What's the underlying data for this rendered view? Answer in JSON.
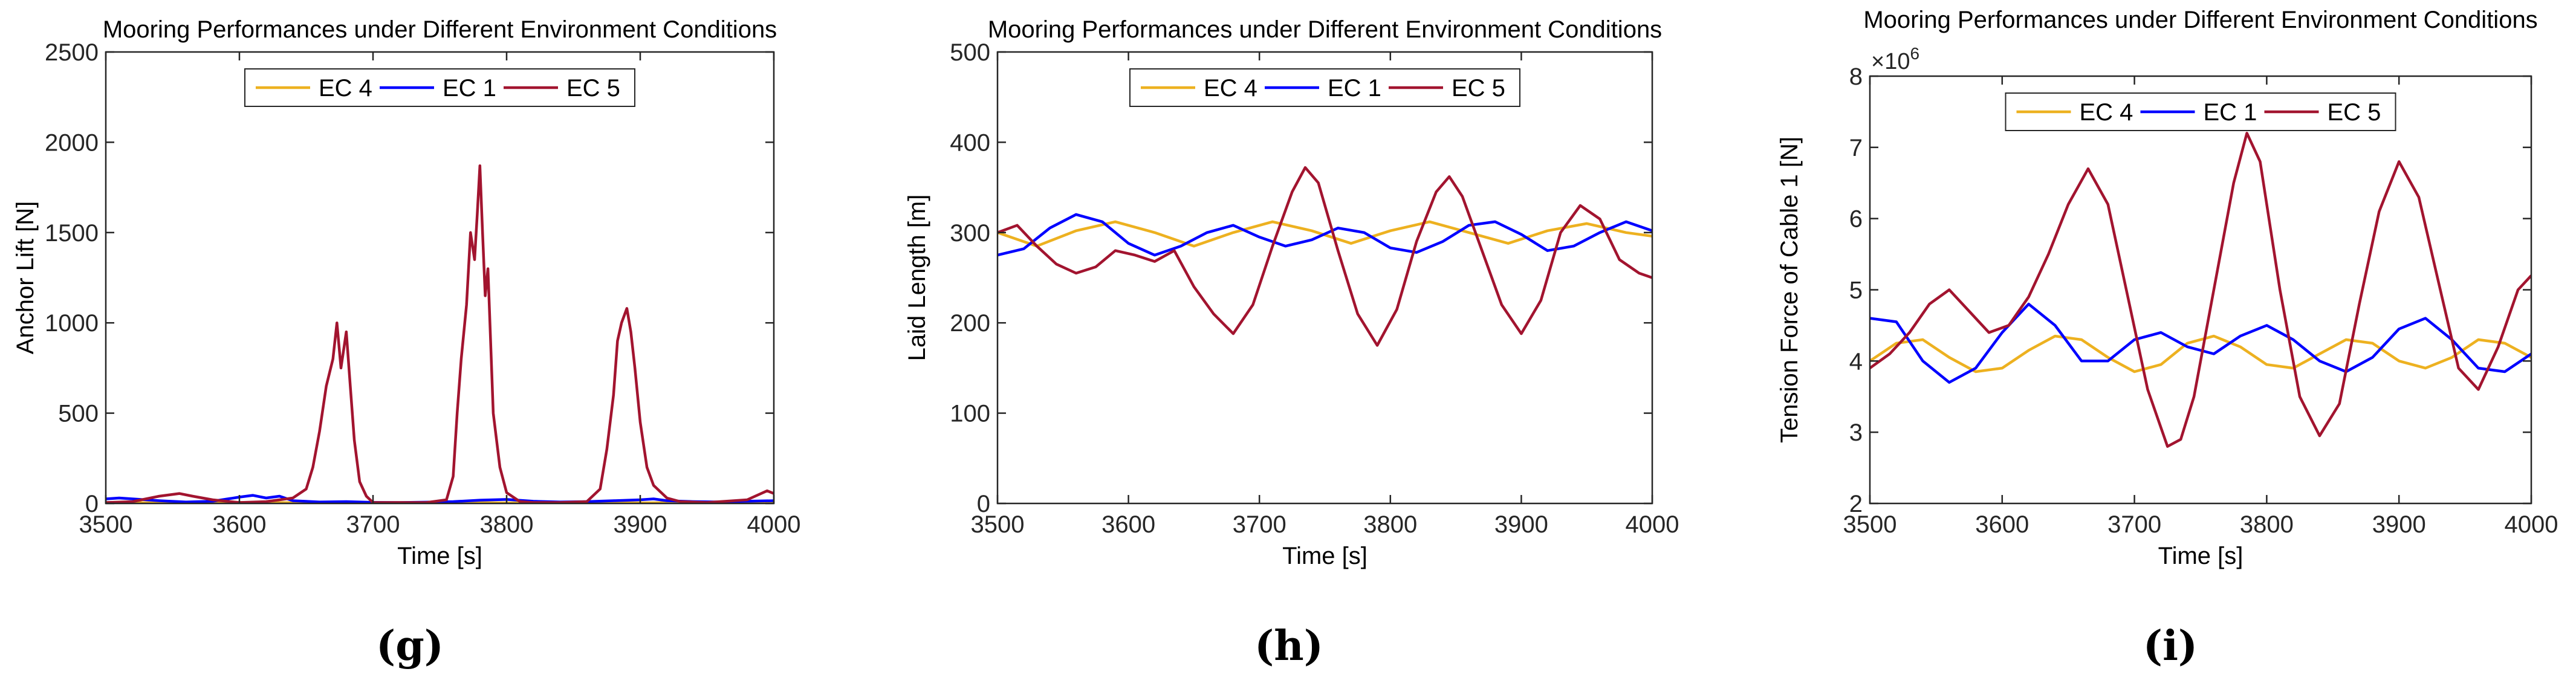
{
  "colors": {
    "ec4": "#EDB120",
    "ec1": "#0000FF",
    "ec5": "#A2142F",
    "axis": "#262626",
    "background": "#ffffff"
  },
  "chart_data": [
    {
      "type": "line",
      "panel_label": "(g)",
      "title": "Mooring Performances under Different Environment Conditions",
      "xlabel": "Time [s]",
      "ylabel": "Anchor Lift [N]",
      "xlim": [
        3500,
        4000
      ],
      "ylim": [
        0,
        2500
      ],
      "x_ticks": [
        3500,
        3600,
        3700,
        3800,
        3900,
        4000
      ],
      "y_ticks": [
        0,
        500,
        1000,
        1500,
        2000,
        2500
      ],
      "y_tick_labels": [
        "0",
        "500",
        "1000",
        "1500",
        "2000",
        "2500"
      ],
      "y_exponent": "",
      "legend": "top-center, horizontal",
      "series": [
        {
          "name": "EC 4",
          "color": "#EDB120",
          "x": [
            3500,
            3520,
            3540,
            3560,
            3580,
            3600,
            3620,
            3640,
            3660,
            3680,
            3700,
            3720,
            3740,
            3760,
            3780,
            3800,
            3820,
            3840,
            3860,
            3880,
            3900,
            3920,
            3940,
            3960,
            3980,
            4000
          ],
          "y": [
            5,
            4,
            3,
            4,
            5,
            6,
            5,
            4,
            3,
            3,
            4,
            5,
            6,
            5,
            4,
            3,
            4,
            5,
            5,
            4,
            3,
            4,
            5,
            6,
            5,
            4
          ]
        },
        {
          "name": "EC 1",
          "color": "#0000FF",
          "x": [
            3500,
            3510,
            3520,
            3540,
            3560,
            3580,
            3600,
            3610,
            3620,
            3630,
            3640,
            3660,
            3680,
            3700,
            3720,
            3740,
            3760,
            3780,
            3800,
            3820,
            3840,
            3860,
            3880,
            3900,
            3910,
            3920,
            3940,
            3960,
            3980,
            4000
          ],
          "y": [
            25,
            30,
            25,
            15,
            8,
            12,
            35,
            45,
            30,
            40,
            15,
            8,
            10,
            6,
            5,
            7,
            10,
            18,
            22,
            12,
            8,
            10,
            15,
            20,
            25,
            15,
            10,
            8,
            12,
            15
          ]
        },
        {
          "name": "EC 5",
          "color": "#A2142F",
          "x": [
            3500,
            3520,
            3540,
            3555,
            3565,
            3580,
            3600,
            3620,
            3640,
            3650,
            3655,
            3660,
            3665,
            3670,
            3673,
            3676,
            3680,
            3683,
            3686,
            3690,
            3695,
            3700,
            3710,
            3720,
            3740,
            3755,
            3760,
            3763,
            3766,
            3770,
            3773,
            3776,
            3778,
            3780,
            3782,
            3784,
            3786,
            3788,
            3790,
            3795,
            3800,
            3810,
            3820,
            3840,
            3860,
            3870,
            3875,
            3880,
            3883,
            3886,
            3890,
            3893,
            3896,
            3900,
            3905,
            3910,
            3920,
            3930,
            3950,
            3980,
            3995,
            4000
          ],
          "y": [
            5,
            10,
            40,
            55,
            40,
            20,
            5,
            10,
            30,
            80,
            200,
            400,
            650,
            800,
            1000,
            750,
            950,
            650,
            350,
            120,
            40,
            5,
            5,
            5,
            5,
            20,
            150,
            500,
            800,
            1100,
            1500,
            1350,
            1600,
            1870,
            1500,
            1150,
            1300,
            900,
            500,
            200,
            60,
            10,
            5,
            5,
            10,
            80,
            300,
            600,
            900,
            1000,
            1080,
            950,
            750,
            450,
            200,
            100,
            30,
            10,
            5,
            20,
            70,
            55
          ]
        }
      ]
    },
    {
      "type": "line",
      "panel_label": "(h)",
      "title": "Mooring Performances under Different Environment Conditions",
      "xlabel": "Time [s]",
      "ylabel": "Laid Length [m]",
      "xlim": [
        3500,
        4000
      ],
      "ylim": [
        0,
        500
      ],
      "x_ticks": [
        3500,
        3600,
        3700,
        3800,
        3900,
        4000
      ],
      "y_ticks": [
        0,
        100,
        200,
        300,
        400,
        500
      ],
      "y_tick_labels": [
        "0",
        "100",
        "200",
        "300",
        "400",
        "500"
      ],
      "y_exponent": "",
      "legend": "top-center, horizontal",
      "series": [
        {
          "name": "EC 4",
          "color": "#EDB120",
          "x": [
            3500,
            3530,
            3560,
            3590,
            3620,
            3650,
            3680,
            3710,
            3740,
            3770,
            3800,
            3830,
            3860,
            3890,
            3920,
            3950,
            3980,
            4000
          ],
          "y": [
            300,
            285,
            302,
            312,
            300,
            285,
            300,
            312,
            302,
            288,
            302,
            312,
            300,
            288,
            302,
            310,
            300,
            296
          ]
        },
        {
          "name": "EC 1",
          "color": "#0000FF",
          "x": [
            3500,
            3520,
            3540,
            3560,
            3580,
            3600,
            3620,
            3640,
            3660,
            3680,
            3700,
            3720,
            3740,
            3760,
            3780,
            3800,
            3820,
            3840,
            3860,
            3880,
            3900,
            3920,
            3940,
            3960,
            3980,
            4000
          ],
          "y": [
            275,
            282,
            305,
            320,
            312,
            288,
            275,
            285,
            300,
            308,
            295,
            285,
            292,
            305,
            300,
            283,
            278,
            290,
            308,
            312,
            298,
            280,
            285,
            300,
            312,
            302
          ]
        },
        {
          "name": "EC 5",
          "color": "#A2142F",
          "x": [
            3500,
            3515,
            3530,
            3545,
            3560,
            3575,
            3590,
            3605,
            3620,
            3635,
            3650,
            3665,
            3680,
            3695,
            3710,
            3725,
            3735,
            3745,
            3760,
            3775,
            3790,
            3805,
            3820,
            3835,
            3845,
            3855,
            3870,
            3885,
            3900,
            3915,
            3930,
            3945,
            3960,
            3975,
            3990,
            4000
          ],
          "y": [
            300,
            308,
            285,
            265,
            255,
            262,
            280,
            275,
            268,
            280,
            240,
            210,
            188,
            220,
            285,
            345,
            372,
            355,
            280,
            210,
            175,
            215,
            290,
            345,
            362,
            340,
            280,
            220,
            188,
            225,
            300,
            330,
            315,
            270,
            255,
            250
          ]
        }
      ]
    },
    {
      "type": "line",
      "panel_label": "(i)",
      "title": "Mooring Performances under Different Environment Conditions",
      "xlabel": "Time [s]",
      "ylabel": "Tension Force of Cable 1 [N]",
      "xlim": [
        3500,
        4000
      ],
      "ylim": [
        2000000,
        8000000
      ],
      "x_ticks": [
        3500,
        3600,
        3700,
        3800,
        3900,
        4000
      ],
      "y_ticks": [
        2000000,
        3000000,
        4000000,
        5000000,
        6000000,
        7000000,
        8000000
      ],
      "y_tick_labels": [
        "2",
        "3",
        "4",
        "5",
        "6",
        "7",
        "8"
      ],
      "y_exponent": "×10",
      "y_exponent_power": "6",
      "legend": "top-center, horizontal",
      "series": [
        {
          "name": "EC 4",
          "color": "#EDB120",
          "x": [
            3500,
            3520,
            3540,
            3560,
            3580,
            3600,
            3620,
            3640,
            3660,
            3680,
            3700,
            3720,
            3740,
            3760,
            3780,
            3800,
            3820,
            3840,
            3860,
            3880,
            3900,
            3920,
            3940,
            3960,
            3980,
            4000
          ],
          "y": [
            4000000,
            4250000,
            4300000,
            4050000,
            3850000,
            3900000,
            4150000,
            4350000,
            4300000,
            4050000,
            3850000,
            3950000,
            4250000,
            4350000,
            4200000,
            3950000,
            3900000,
            4100000,
            4300000,
            4250000,
            4000000,
            3900000,
            4050000,
            4300000,
            4250000,
            4050000
          ]
        },
        {
          "name": "EC 1",
          "color": "#0000FF",
          "x": [
            3500,
            3520,
            3540,
            3560,
            3580,
            3600,
            3620,
            3640,
            3660,
            3680,
            3700,
            3720,
            3740,
            3760,
            3780,
            3800,
            3820,
            3840,
            3860,
            3880,
            3900,
            3920,
            3940,
            3960,
            3980,
            4000
          ],
          "y": [
            4600000,
            4550000,
            4000000,
            3700000,
            3900000,
            4400000,
            4800000,
            4500000,
            4000000,
            4000000,
            4300000,
            4400000,
            4200000,
            4100000,
            4350000,
            4500000,
            4300000,
            4000000,
            3850000,
            4050000,
            4450000,
            4600000,
            4300000,
            3900000,
            3850000,
            4100000
          ]
        },
        {
          "name": "EC 5",
          "color": "#A2142F",
          "x": [
            3500,
            3515,
            3530,
            3545,
            3560,
            3575,
            3590,
            3605,
            3620,
            3635,
            3650,
            3665,
            3680,
            3695,
            3710,
            3725,
            3735,
            3745,
            3760,
            3775,
            3785,
            3795,
            3810,
            3825,
            3840,
            3855,
            3870,
            3885,
            3900,
            3915,
            3930,
            3945,
            3960,
            3975,
            3990,
            4000
          ],
          "y": [
            3900000,
            4100000,
            4400000,
            4800000,
            5000000,
            4700000,
            4400000,
            4500000,
            4900000,
            5500000,
            6200000,
            6700000,
            6200000,
            4900000,
            3600000,
            2800000,
            2900000,
            3500000,
            5000000,
            6500000,
            7200000,
            6800000,
            5000000,
            3500000,
            2950000,
            3400000,
            4800000,
            6100000,
            6800000,
            6300000,
            5100000,
            3900000,
            3600000,
            4200000,
            5000000,
            5200000
          ]
        }
      ]
    }
  ]
}
